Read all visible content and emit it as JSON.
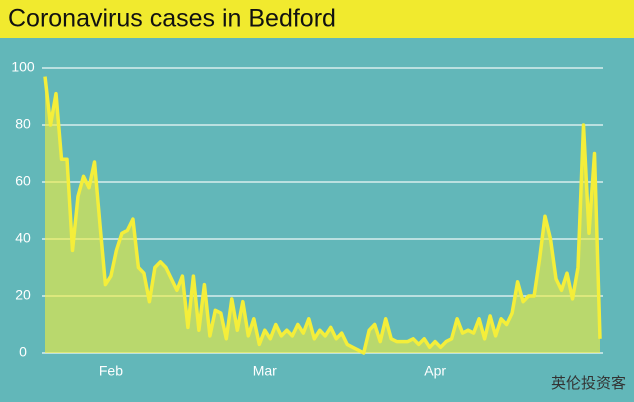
{
  "chart_data": {
    "type": "area",
    "title": "Coronavirus cases in Bedford",
    "categories": [
      null,
      null,
      null,
      null,
      null,
      null,
      null,
      null,
      null,
      null,
      null,
      null,
      "Feb",
      null,
      null,
      null,
      null,
      null,
      null,
      null,
      null,
      null,
      null,
      null,
      null,
      null,
      null,
      null,
      null,
      null,
      null,
      null,
      null,
      null,
      null,
      null,
      null,
      null,
      null,
      null,
      "Mar",
      null,
      null,
      null,
      null,
      null,
      null,
      null,
      null,
      null,
      null,
      null,
      null,
      null,
      null,
      null,
      null,
      null,
      null,
      null,
      null,
      null,
      null,
      null,
      null,
      null,
      null,
      null,
      null,
      null,
      null,
      "Apr",
      null,
      null,
      null,
      null,
      null,
      null,
      null,
      null,
      null,
      null,
      null,
      null,
      null,
      null,
      null,
      null,
      null,
      null,
      null,
      null,
      null,
      null,
      null,
      null,
      null,
      null,
      null,
      null,
      null,
      null
    ],
    "series": [
      {
        "name": "Cases",
        "color": "#f4ee3a",
        "values": [
          97,
          80,
          91,
          68,
          68,
          36,
          55,
          62,
          58,
          67,
          45,
          24,
          27,
          36,
          42,
          43,
          47,
          30,
          28,
          18,
          30,
          32,
          30,
          26,
          22,
          27,
          9,
          27,
          8,
          24,
          6,
          15,
          14,
          5,
          19,
          8,
          18,
          6,
          12,
          3,
          8,
          5,
          10,
          6,
          8,
          6,
          10,
          7,
          12,
          5,
          8,
          6,
          9,
          5,
          7,
          3,
          2,
          1,
          0,
          8,
          10,
          4,
          12,
          5,
          4,
          4,
          4,
          5,
          3,
          5,
          2,
          4,
          2,
          4,
          5,
          12,
          7,
          8,
          7,
          12,
          5,
          13,
          6,
          12,
          10,
          14,
          25,
          18,
          20,
          20,
          33,
          48,
          40,
          26,
          22,
          28,
          19,
          30,
          80,
          42,
          70,
          5
        ]
      }
    ],
    "ylim": [
      0,
      100
    ],
    "yticks": [
      0,
      20,
      40,
      60,
      80,
      100
    ],
    "grid": true
  },
  "watermark": "英伦投资客"
}
